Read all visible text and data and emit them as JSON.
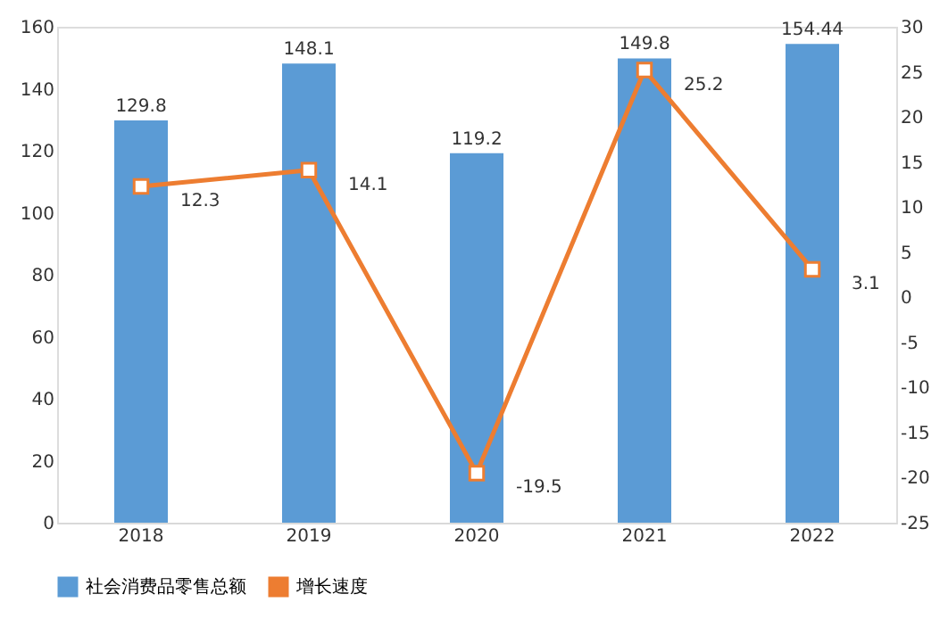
{
  "chart_data": {
    "type": "bar",
    "categories": [
      "2018",
      "2019",
      "2020",
      "2021",
      "2022"
    ],
    "series": [
      {
        "name": "社会消费品零售总额",
        "color": "#5b9bd5",
        "values": [
          129.8,
          148.1,
          119.2,
          149.8,
          154.44
        ]
      },
      {
        "name": "增长速度",
        "type": "line",
        "axis": "y2",
        "color": "#ed7d31",
        "marker": "square",
        "values": [
          12.3,
          14.1,
          -19.5,
          25.2,
          3.1
        ]
      }
    ],
    "ylim": [
      0,
      160
    ],
    "yticks": [
      0,
      20,
      40,
      60,
      80,
      100,
      120,
      140,
      160
    ],
    "y2lim": [
      -25,
      30
    ],
    "y2ticks": [
      -25,
      -20,
      -15,
      -10,
      -5,
      0,
      5,
      10,
      15,
      20,
      25,
      30
    ],
    "data_labels": true,
    "legend": "bottom"
  }
}
